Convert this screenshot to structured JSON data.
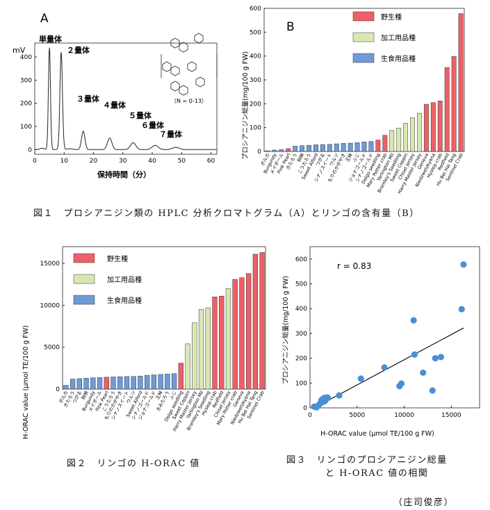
{
  "fig1": {
    "caption": "図１　プロシアニジン類の HPLC 分析クロマトグラム（A）とリンゴの含有量（B）",
    "panelA": {
      "label": "A",
      "ylabel": "mV",
      "xlabel": "保持時間（分）",
      "structure_note": "（N = 0-13）",
      "peaks": [
        "単量体",
        "２量体",
        "３量体",
        "４量体",
        "５量体",
        "６量体",
        "７量体"
      ],
      "chart_data": {
        "type": "line",
        "x_ticks": [
          0,
          10,
          20,
          30,
          40,
          50,
          60
        ],
        "y_ticks": [
          0,
          100,
          200,
          300,
          400
        ],
        "xlim": [
          0,
          62
        ],
        "ylim": [
          -20,
          460
        ],
        "peaks": [
          {
            "label": "単量体",
            "x": 5.0,
            "y": 440
          },
          {
            "label": "２量体",
            "x": 9.0,
            "y": 420
          },
          {
            "label": "３量体",
            "x": 16.5,
            "y": 80
          },
          {
            "label": "４量体",
            "x": 25.5,
            "y": 50
          },
          {
            "label": "５量体",
            "x": 33.5,
            "y": 30
          },
          {
            "label": "６量体",
            "x": 41.0,
            "y": 18
          },
          {
            "label": "７量体",
            "x": 48.0,
            "y": 10
          }
        ]
      }
    },
    "panelB": {
      "label": "B",
      "ylabel": "プロシアニジン総量(mg/100 g FW)",
      "chart_data": {
        "type": "bar",
        "ylim": [
          0,
          600
        ],
        "y_ticks": [
          0,
          100,
          200,
          300,
          400,
          500,
          600
        ],
        "legend": [
          {
            "name": "野生種",
            "color": "#ee6066"
          },
          {
            "name": "加工用品種",
            "color": "#d8e8b4"
          },
          {
            "name": "生食用品種",
            "color": "#6f9bd8"
          }
        ],
        "legend_position": "top",
        "categories": [
          "ポルカ",
          "Burgundy",
          "メイポール",
          "Pink Pearl",
          "きたろう",
          "秋映",
          "こうたろう",
          "Sweet Alford",
          "つがる",
          "シナノスイート",
          "ワルツ",
          "もりのかがやき",
          "王林",
          "ふじ",
          "ジョナゴールド",
          "シナノゴールド",
          "Dolgo seedling",
          "Mary Potter crab",
          "Yarlington Mil",
          "Bramley's Seedling",
          "Sweet Coppin",
          "Chisel Jersey",
          "Harry Master Jersey",
          "Geneva",
          "Niedzwetzkyana",
          "Hyslop crab",
          "Redfield",
          "Hu Bei Hai Tang",
          "Sentinel Crab"
        ],
        "values": [
          3,
          6,
          8,
          12,
          22,
          24,
          26,
          28,
          29,
          30,
          32,
          34,
          35,
          37,
          40,
          42,
          48,
          68,
          88,
          98,
          118,
          142,
          160,
          198,
          205,
          212,
          352,
          398,
          578
        ],
        "groups": [
          "生食用品種",
          "生食用品種",
          "生食用品種",
          "野生種",
          "生食用品種",
          "生食用品種",
          "生食用品種",
          "生食用品種",
          "生食用品種",
          "生食用品種",
          "生食用品種",
          "生食用品種",
          "生食用品種",
          "生食用品種",
          "生食用品種",
          "生食用品種",
          "野生種",
          "野生種",
          "加工用品種",
          "加工用品種",
          "加工用品種",
          "加工用品種",
          "加工用品種",
          "野生種",
          "野生種",
          "野生種",
          "野生種",
          "野生種",
          "野生種"
        ]
      }
    }
  },
  "fig2": {
    "caption": "図２　リンゴの H-ORAC 値",
    "chart_data": {
      "type": "bar",
      "ylabel": "H-ORAC value (μmol TE/100 g FW)",
      "ylim": [
        0,
        17000
      ],
      "y_ticks": [
        0,
        5000,
        10000,
        15000
      ],
      "legend": [
        {
          "name": "野生種",
          "color": "#ee6066"
        },
        {
          "name": "加工用品種",
          "color": "#d8e8b4"
        },
        {
          "name": "生食用品種",
          "color": "#6f9bd8"
        }
      ],
      "legend_position": "top-left",
      "categories": [
        "ポルカ",
        "きたろう",
        "つがる",
        "秋映",
        "Burgundy",
        "メイポール",
        "Pink Pearl",
        "こうたろう",
        "もりのかがやき",
        "シナノスイート",
        "ワルツ",
        "Sweet Alford",
        "シナノゴールド",
        "ジョナゴールド",
        "王林",
        "きみたろう",
        "ふじ",
        "Dolgo seedling",
        "Sweet Coppin",
        "Harry Master Jersey",
        "Yarlington Mil",
        "Bramley's Seedling",
        "Hyslop crab",
        "Redfield",
        "Chisel Jersey",
        "Mary Potter crab",
        "Geneva",
        "Niedzwetzkyana",
        "Hu Bei Hai Tang",
        "Sentinel Crab"
      ],
      "values": [
        450,
        1200,
        1250,
        1300,
        1350,
        1380,
        1420,
        1450,
        1480,
        1500,
        1520,
        1560,
        1650,
        1700,
        1750,
        1800,
        1850,
        3100,
        5400,
        7900,
        9500,
        9700,
        11000,
        11100,
        12000,
        13100,
        13300,
        13800,
        16100,
        16300
      ],
      "groups": [
        "生食用品種",
        "生食用品種",
        "生食用品種",
        "生食用品種",
        "生食用品種",
        "生食用品種",
        "野生種",
        "生食用品種",
        "生食用品種",
        "生食用品種",
        "生食用品種",
        "生食用品種",
        "生食用品種",
        "生食用品種",
        "生食用品種",
        "生食用品種",
        "生食用品種",
        "野生種",
        "加工用品種",
        "加工用品種",
        "加工用品種",
        "加工用品種",
        "野生種",
        "野生種",
        "加工用品種",
        "野生種",
        "野生種",
        "野生種",
        "野生種",
        "野生種"
      ]
    }
  },
  "fig3": {
    "caption_line1": "図３　リンゴのプロシアニジン総量",
    "caption_line2": "と H-ORAC 値の相関",
    "chart_data": {
      "type": "scatter",
      "xlabel": "H-ORAC value (μmol TE/100 g FW)",
      "ylabel": "プロシアニジン総量(mg/100 g FW)",
      "annotation": "r = 0.83",
      "xlim": [
        0,
        18000
      ],
      "ylim": [
        0,
        650
      ],
      "x_ticks": [
        0,
        5000,
        10000,
        15000
      ],
      "y_ticks": [
        0,
        100,
        200,
        300,
        400,
        500,
        600
      ],
      "point_color": "#4a8fd6",
      "x": [
        450,
        700,
        900,
        1100,
        1200,
        1250,
        1350,
        1400,
        1500,
        1600,
        1700,
        1800,
        1900,
        3100,
        5400,
        7900,
        9500,
        9700,
        11000,
        11100,
        12000,
        13000,
        13300,
        13900,
        16100,
        16300
      ],
      "y": [
        5,
        2,
        10,
        18,
        30,
        22,
        35,
        25,
        40,
        28,
        37,
        42,
        40,
        50,
        118,
        163,
        88,
        98,
        353,
        215,
        142,
        70,
        200,
        205,
        398,
        578
      ],
      "regression": {
        "x": [
          450,
          16300
        ],
        "y": [
          -5,
          322
        ]
      }
    }
  },
  "author": "（庄司俊彦）"
}
